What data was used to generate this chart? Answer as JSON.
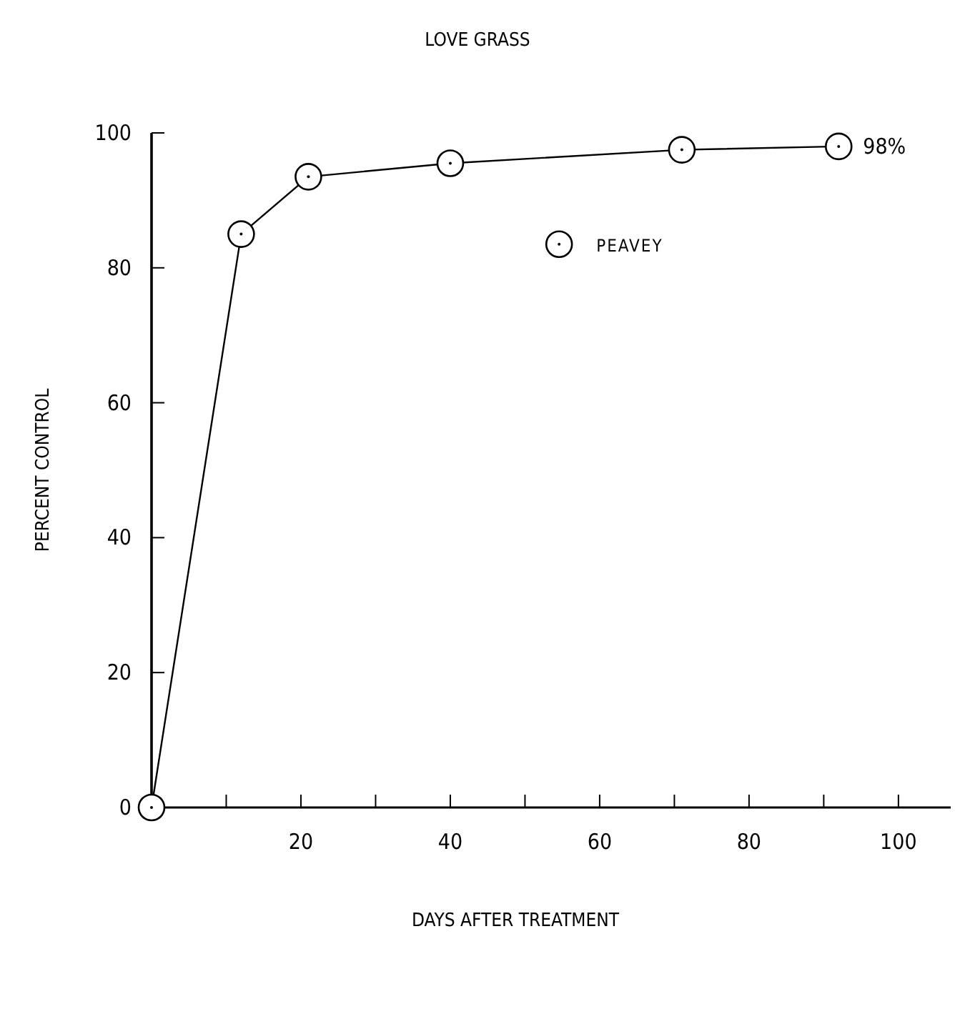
{
  "chart_data": {
    "type": "line",
    "title": "LOVE GRASS",
    "xlabel": "DAYS AFTER TREATMENT",
    "ylabel": "PERCENT CONTROL",
    "x": [
      0,
      12,
      21,
      40,
      71,
      92
    ],
    "series": [
      {
        "name": "PEAVEY",
        "color": "#000000",
        "values": [
          0,
          85,
          93.5,
          95.5,
          97.5,
          98
        ]
      }
    ],
    "xlim": [
      0,
      107
    ],
    "ylim": [
      0,
      100
    ],
    "xticks": [
      {
        "value": 10,
        "label": null
      },
      20,
      {
        "value": 30,
        "label": null
      },
      40,
      {
        "value": 50,
        "label": null
      },
      60,
      {
        "value": 70,
        "label": null
      },
      80,
      {
        "value": 90,
        "label": null
      },
      100
    ],
    "yticks": [
      0,
      20,
      40,
      60,
      80,
      100
    ],
    "annotations": [
      {
        "text": "98%",
        "x": 92,
        "y": 98
      }
    ],
    "legend": "top right",
    "marker": "circle",
    "grid": false
  }
}
